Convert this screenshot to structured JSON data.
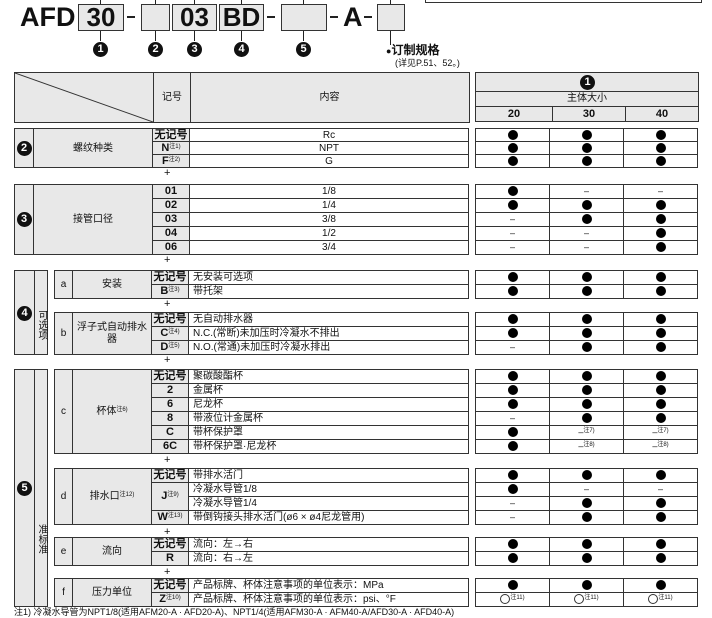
{
  "model": {
    "prefix": "AFD",
    "boxes": [
      "30",
      "",
      "03",
      "BD",
      "",
      "",
      ""
    ],
    "suffix": "A",
    "markers": [
      "1",
      "2",
      "3",
      "4",
      "5"
    ],
    "custom_label": "订制规格",
    "custom_ref": "(详见P.51、52。)"
  },
  "header": {
    "code_col": "记号",
    "content_col": "内容",
    "size_marker": "1",
    "size_title": "主体大小",
    "sizes": [
      "20",
      "30",
      "40"
    ]
  },
  "plus": "+",
  "sections": [
    {
      "num": "2",
      "label": "螺纹种类",
      "rows": [
        {
          "code": "无记号",
          "note": "",
          "content": "Rc",
          "sizes": [
            {
              "v": "●"
            },
            {
              "v": "●"
            },
            {
              "v": "●"
            }
          ]
        },
        {
          "code": "N",
          "note": "注1)",
          "content": "NPT",
          "sizes": [
            {
              "v": "●"
            },
            {
              "v": "●"
            },
            {
              "v": "●"
            }
          ]
        },
        {
          "code": "F",
          "note": "注2)",
          "content": "G",
          "sizes": [
            {
              "v": "●"
            },
            {
              "v": "●"
            },
            {
              "v": "●"
            }
          ]
        }
      ]
    },
    {
      "num": "3",
      "label": "接管口径",
      "rows": [
        {
          "code": "01",
          "note": "",
          "content": "1/8",
          "sizes": [
            {
              "v": "●"
            },
            {
              "v": "–"
            },
            {
              "v": "–"
            }
          ]
        },
        {
          "code": "02",
          "note": "",
          "content": "1/4",
          "sizes": [
            {
              "v": "●"
            },
            {
              "v": "●"
            },
            {
              "v": "●"
            }
          ]
        },
        {
          "code": "03",
          "note": "",
          "content": "3/8",
          "sizes": [
            {
              "v": "–"
            },
            {
              "v": "●"
            },
            {
              "v": "●"
            }
          ]
        },
        {
          "code": "04",
          "note": "",
          "content": "1/2",
          "sizes": [
            {
              "v": "–"
            },
            {
              "v": "–"
            },
            {
              "v": "●"
            }
          ]
        },
        {
          "code": "06",
          "note": "",
          "content": "3/4",
          "sizes": [
            {
              "v": "–"
            },
            {
              "v": "–"
            },
            {
              "v": "●"
            }
          ]
        }
      ]
    },
    {
      "num": "4",
      "vlabel": "可选项",
      "subs": [
        {
          "letter": "a",
          "label": "安装",
          "note": "",
          "rows": [
            {
              "code": "无记号",
              "note": "",
              "content": "无安装可选项",
              "sizes": [
                {
                  "v": "●"
                },
                {
                  "v": "●"
                },
                {
                  "v": "●"
                }
              ]
            },
            {
              "code": "B",
              "note": "注3)",
              "content": "带托架",
              "sizes": [
                {
                  "v": "●"
                },
                {
                  "v": "●"
                },
                {
                  "v": "●"
                }
              ]
            }
          ]
        },
        {
          "letter": "b",
          "label": "浮子式自动排水器",
          "note": "",
          "rows": [
            {
              "code": "无记号",
              "note": "",
              "content": "无自动排水器",
              "sizes": [
                {
                  "v": "●"
                },
                {
                  "v": "●"
                },
                {
                  "v": "●"
                }
              ]
            },
            {
              "code": "C",
              "note": "注4)",
              "content": "N.C.(常断)未加压时冷凝水不排出",
              "sizes": [
                {
                  "v": "●"
                },
                {
                  "v": "●"
                },
                {
                  "v": "●"
                }
              ]
            },
            {
              "code": "D",
              "note": "注5)",
              "content": "N.O.(常通)未加压时冷凝水排出",
              "sizes": [
                {
                  "v": "–"
                },
                {
                  "v": "●"
                },
                {
                  "v": "●"
                }
              ]
            }
          ]
        }
      ]
    },
    {
      "num": "5",
      "vlabel": "准标准",
      "subs": [
        {
          "letter": "c",
          "label": "杯体",
          "note": "注6)",
          "rows": [
            {
              "code": "无记号",
              "note": "",
              "content": "聚碳酸酯杯",
              "sizes": [
                {
                  "v": "●"
                },
                {
                  "v": "●"
                },
                {
                  "v": "●"
                }
              ]
            },
            {
              "code": "2",
              "note": "",
              "content": "金属杯",
              "sizes": [
                {
                  "v": "●"
                },
                {
                  "v": "●"
                },
                {
                  "v": "●"
                }
              ]
            },
            {
              "code": "6",
              "note": "",
              "content": "尼龙杯",
              "sizes": [
                {
                  "v": "●"
                },
                {
                  "v": "●"
                },
                {
                  "v": "●"
                }
              ]
            },
            {
              "code": "8",
              "note": "",
              "content": "带液位计金属杯",
              "sizes": [
                {
                  "v": "–"
                },
                {
                  "v": "●"
                },
                {
                  "v": "●"
                }
              ]
            },
            {
              "code": "C",
              "note": "",
              "content": "带杯保护罩",
              "sizes": [
                {
                  "v": "●"
                },
                {
                  "v": "–",
                  "n": "注7)"
                },
                {
                  "v": "–",
                  "n": "注7)"
                }
              ]
            },
            {
              "code": "6C",
              "note": "",
              "content": "带杯保护罩·尼龙杯",
              "sizes": [
                {
                  "v": "●"
                },
                {
                  "v": "–",
                  "n": "注8)"
                },
                {
                  "v": "–",
                  "n": "注8)"
                }
              ]
            }
          ]
        },
        {
          "letter": "d",
          "label": "排水口",
          "note": "注12)",
          "rows": [
            {
              "code": "无记号",
              "note": "",
              "content": "带排水活门",
              "sizes": [
                {
                  "v": "●"
                },
                {
                  "v": "●"
                },
                {
                  "v": "●"
                }
              ]
            },
            {
              "code": "J",
              "note": "注9)",
              "span": 2,
              "content": "冷凝水导管1/8",
              "sizes": [
                {
                  "v": "●"
                },
                {
                  "v": "–"
                },
                {
                  "v": "–"
                }
              ]
            },
            {
              "code": null,
              "note": "",
              "content": "冷凝水导管1/4",
              "sizes": [
                {
                  "v": "–"
                },
                {
                  "v": "●"
                },
                {
                  "v": "●"
                }
              ]
            },
            {
              "code": "W",
              "note": "注13)",
              "content": "带倒钩接头排水活门(ø6 × ø4尼龙管用)",
              "sizes": [
                {
                  "v": "–"
                },
                {
                  "v": "●"
                },
                {
                  "v": "●"
                }
              ]
            }
          ]
        },
        {
          "letter": "e",
          "label": "流向",
          "note": "",
          "rows": [
            {
              "code": "无记号",
              "note": "",
              "content": "流向：左→右",
              "sizes": [
                {
                  "v": "●"
                },
                {
                  "v": "●"
                },
                {
                  "v": "●"
                }
              ]
            },
            {
              "code": "R",
              "note": "",
              "content": "流向：右→左",
              "sizes": [
                {
                  "v": "●"
                },
                {
                  "v": "●"
                },
                {
                  "v": "●"
                }
              ]
            }
          ]
        },
        {
          "letter": "f",
          "label": "压力单位",
          "note": "",
          "rows": [
            {
              "code": "无记号",
              "note": "",
              "content": "产品标牌、杯体注意事项的单位表示：MPa",
              "sizes": [
                {
                  "v": "●"
                },
                {
                  "v": "●"
                },
                {
                  "v": "●"
                }
              ]
            },
            {
              "code": "Z",
              "note": "注10)",
              "content": "产品标牌、杯体注意事项的单位表示：psi、°F",
              "sizes": [
                {
                  "v": "○",
                  "n": "注11)"
                },
                {
                  "v": "○",
                  "n": "注11)"
                },
                {
                  "v": "○",
                  "n": "注11)"
                }
              ]
            }
          ]
        }
      ]
    }
  ],
  "footnote": "注1) 冷凝水导管为NPT1/8(适用AFM20-A · AFD20-A)、NPT1/4(适用AFM30-A · AFM40-A/AFD30-A · AFD40-A)"
}
